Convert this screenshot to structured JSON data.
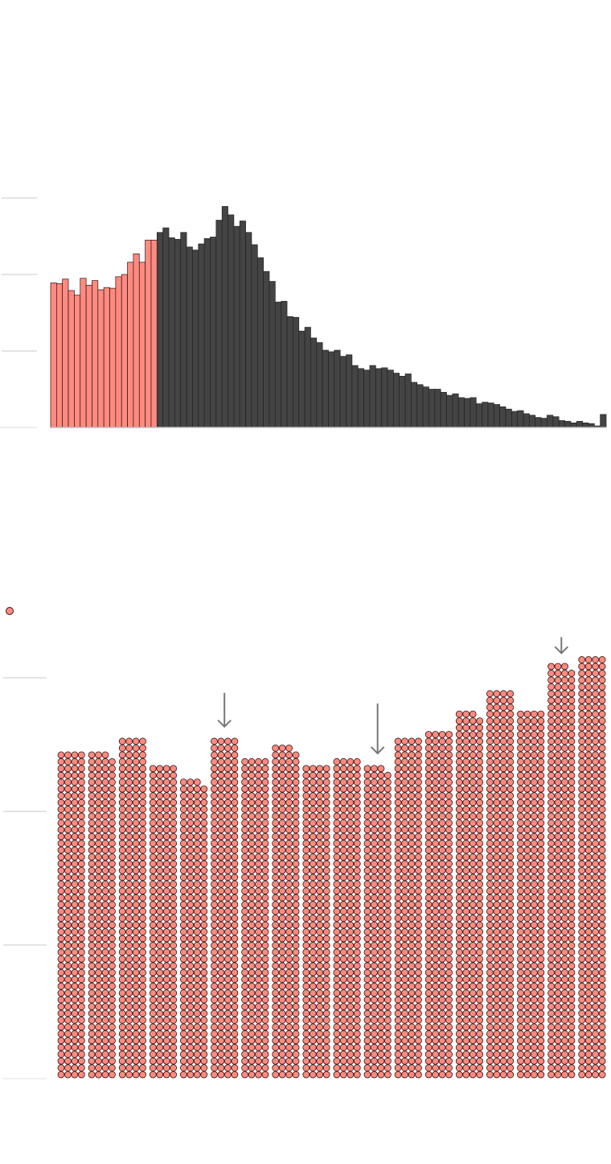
{
  "colors": {
    "highlight": "#ff8a80",
    "bar": "#444444",
    "outline": "#2b1010",
    "grid": "#c8c8c8",
    "arrow": "#777777"
  },
  "chart_data": [
    {
      "type": "bar",
      "title": "",
      "xlabel": "",
      "ylabel": "",
      "grid": true,
      "ylim": [
        0,
        300
      ],
      "yticks": [
        100,
        200,
        300
      ],
      "highlight_count": 18,
      "values": [
        189,
        188,
        194,
        179,
        173,
        195,
        186,
        192,
        180,
        183,
        182,
        197,
        200,
        216,
        227,
        216,
        245,
        245,
        255,
        261,
        248,
        246,
        255,
        236,
        232,
        240,
        247,
        249,
        271,
        289,
        278,
        263,
        270,
        255,
        239,
        222,
        204,
        191,
        164,
        165,
        145,
        144,
        126,
        131,
        117,
        111,
        101,
        99,
        101,
        93,
        95,
        81,
        77,
        75,
        81,
        77,
        78,
        75,
        71,
        67,
        70,
        59,
        56,
        53,
        50,
        50,
        46,
        42,
        44,
        39,
        38,
        39,
        31,
        33,
        32,
        30,
        27,
        24,
        21,
        22,
        18,
        16,
        13,
        12,
        16,
        14,
        9,
        8,
        6,
        8,
        6,
        5,
        2,
        17
      ]
    },
    {
      "type": "bar",
      "title": "",
      "xlabel": "",
      "ylabel": "",
      "legend": "top-left",
      "grid": true,
      "unit_per_dot": 1,
      "ylim": [
        0,
        60
      ],
      "yticks": [
        20,
        40,
        60
      ],
      "values": [
        49,
        49,
        51,
        47,
        45,
        51,
        48,
        50,
        47,
        48,
        47,
        51,
        52,
        55,
        58,
        55,
        62,
        63
      ],
      "arrows_at": [
        5,
        10,
        16
      ]
    }
  ]
}
